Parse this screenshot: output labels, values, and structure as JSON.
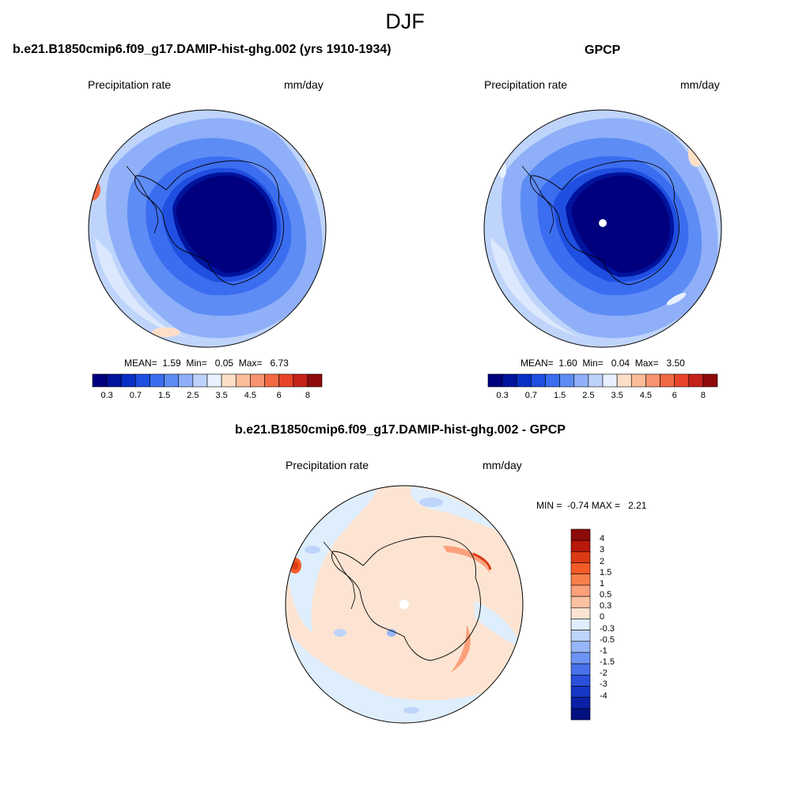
{
  "title": "DJF",
  "panels": [
    {
      "id": "model",
      "title": "b.e21.B1850cmip6.f09_g17.DAMIP-hist-ghg.002 (yrs 1910-1934)",
      "left_label": "Precipitation rate",
      "right_label": "mm/day",
      "stats": {
        "mean_label": "MEAN=",
        "mean": "1.59",
        "min_label": "Min=",
        "min": "0.05",
        "max_label": "Max=",
        "max": "6.73"
      }
    },
    {
      "id": "obs",
      "title": "GPCP",
      "left_label": "Precipitation rate",
      "right_label": "mm/day",
      "stats": {
        "mean_label": "MEAN=",
        "mean": "1.60",
        "min_label": "Min=",
        "min": "0.04",
        "max_label": "Max=",
        "max": "3.50"
      }
    },
    {
      "id": "diff",
      "title": "b.e21.B1850cmip6.f09_g17.DAMIP-hist-ghg.002 - GPCP",
      "left_label": "Precipitation rate",
      "right_label": "mm/day",
      "minmax": {
        "min_label": "MIN =",
        "min": "-0.74",
        "max_label": "MAX =",
        "max": "2.21"
      }
    }
  ],
  "colorbar_abs": {
    "colors": [
      "#00007f",
      "#00139c",
      "#0a2fc4",
      "#1f4fe0",
      "#3b6df0",
      "#5e8cf5",
      "#8fb0f8",
      "#bdd2fb",
      "#e8f1fd",
      "#fddfc8",
      "#fbbc9b",
      "#f89470",
      "#f26a44",
      "#e8442a",
      "#c4221a",
      "#8e0b0b"
    ],
    "tick_labels": [
      "0.3",
      "0.7",
      "1.5",
      "2.5",
      "3.5",
      "4.5",
      "6",
      "8"
    ]
  },
  "colorbar_diff": {
    "colors": [
      "#8e0b0b",
      "#b8170c",
      "#dc3a14",
      "#f55b28",
      "#f9804d",
      "#fba07a",
      "#fcc3a3",
      "#fde4d2",
      "#dfeefd",
      "#bfd4fb",
      "#97b6f8",
      "#6e94f3",
      "#4872ea",
      "#2a50dc",
      "#1636c5",
      "#0a20a6",
      "#00107f"
    ],
    "tick_labels": [
      "4",
      "3",
      "2",
      "1.5",
      "1",
      "0.5",
      "0.3",
      "0",
      "-0.3",
      "-0.5",
      "-1",
      "-1.5",
      "-2",
      "-3",
      "-4"
    ]
  }
}
